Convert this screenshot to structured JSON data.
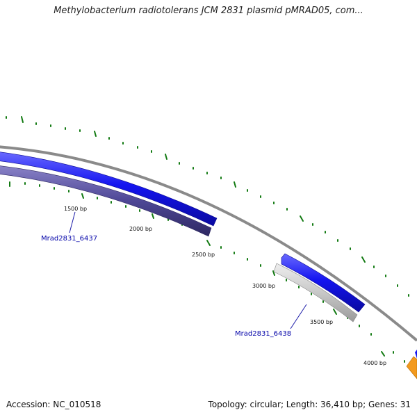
{
  "title": "Methylobacterium radiotolerans JCM 2831 plasmid pMRAD05, com...",
  "footer": {
    "accession": "Accession: NC_010518",
    "summary": "Topology: circular; Length: 36,410 bp; Genes: 31"
  },
  "scale_ticks": [
    "1500 bp",
    "2000 bp",
    "2500 bp",
    "3000 bp",
    "3500 bp",
    "4000 bp"
  ],
  "gene_labels": [
    "Mrad2831_6437",
    "Mrad2831_6438"
  ],
  "colors": {
    "backbone": "#8a8a8a",
    "forward_gene": "#1414f0",
    "reverse_gene_1": "#4e4796",
    "reverse_gene_2": "#c8c8c8",
    "tick": "#127a12",
    "label": "#0000a8",
    "other_feature": "#f39a1e"
  }
}
